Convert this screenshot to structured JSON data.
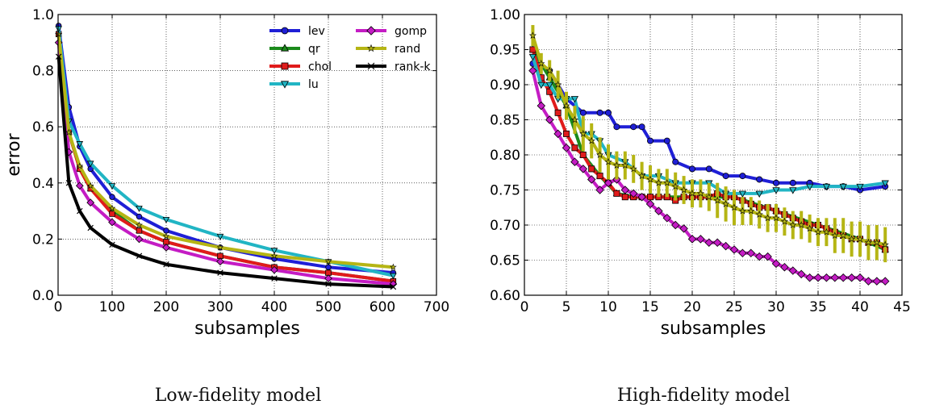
{
  "captions": {
    "left": "Low-fidelity model",
    "right": "High-fidelity model"
  },
  "chart_data": [
    {
      "type": "line",
      "xlabel": "subsamples",
      "ylabel": "error",
      "xlim": [
        0,
        700
      ],
      "ylim": [
        0.0,
        1.0
      ],
      "xticks": [
        "0",
        "100",
        "200",
        "300",
        "400",
        "500",
        "600",
        "700"
      ],
      "yticks": [
        "0.0",
        "0.2",
        "0.4",
        "0.6",
        "0.8",
        "1.0"
      ],
      "grid": true,
      "legend": "top-right, two columns",
      "series": [
        {
          "name": "lev",
          "color": "#1f1fd6",
          "marker": "circle",
          "x": [
            1,
            20,
            40,
            60,
            100,
            150,
            200,
            300,
            400,
            500,
            620
          ],
          "y": [
            0.96,
            0.67,
            0.53,
            0.45,
            0.35,
            0.28,
            0.23,
            0.17,
            0.13,
            0.1,
            0.08
          ]
        },
        {
          "name": "qr",
          "color": "#1b8a1b",
          "marker": "triangle-up",
          "x": [
            1,
            20,
            40,
            60,
            100,
            150,
            200,
            300,
            400,
            500,
            620
          ],
          "y": [
            0.94,
            0.58,
            0.45,
            0.38,
            0.3,
            0.23,
            0.19,
            0.14,
            0.1,
            0.08,
            0.05
          ]
        },
        {
          "name": "chol",
          "color": "#e01b1b",
          "marker": "square",
          "x": [
            1,
            20,
            40,
            60,
            100,
            150,
            200,
            300,
            400,
            500,
            620
          ],
          "y": [
            0.93,
            0.58,
            0.45,
            0.38,
            0.29,
            0.23,
            0.19,
            0.14,
            0.1,
            0.08,
            0.05
          ]
        },
        {
          "name": "lu",
          "color": "#21b5c4",
          "marker": "triangle-down",
          "x": [
            1,
            20,
            40,
            60,
            100,
            150,
            200,
            300,
            400,
            500,
            620
          ],
          "y": [
            0.95,
            0.62,
            0.54,
            0.47,
            0.39,
            0.31,
            0.27,
            0.21,
            0.16,
            0.12,
            0.07
          ]
        },
        {
          "name": "gomp",
          "color": "#c41cc4",
          "marker": "diamond",
          "x": [
            1,
            20,
            40,
            60,
            100,
            150,
            200,
            300,
            400,
            500,
            620
          ],
          "y": [
            0.9,
            0.51,
            0.39,
            0.33,
            0.26,
            0.2,
            0.17,
            0.12,
            0.09,
            0.06,
            0.04
          ]
        },
        {
          "name": "rand",
          "color": "#b5b514",
          "marker": "star",
          "x": [
            1,
            20,
            40,
            60,
            100,
            150,
            200,
            300,
            400,
            500,
            620
          ],
          "y": [
            0.93,
            0.58,
            0.46,
            0.39,
            0.31,
            0.25,
            0.21,
            0.17,
            0.14,
            0.12,
            0.1
          ]
        },
        {
          "name": "rank-k",
          "color": "#000000",
          "marker": "x",
          "x": [
            1,
            20,
            40,
            60,
            100,
            150,
            200,
            300,
            400,
            500,
            620
          ],
          "y": [
            0.85,
            0.4,
            0.3,
            0.24,
            0.18,
            0.14,
            0.11,
            0.08,
            0.06,
            0.04,
            0.03
          ]
        }
      ]
    },
    {
      "type": "line",
      "xlabel": "subsamples",
      "ylabel": "",
      "xlim": [
        0,
        45
      ],
      "ylim": [
        0.6,
        1.0
      ],
      "xticks": [
        "0",
        "5",
        "10",
        "15",
        "20",
        "25",
        "30",
        "35",
        "40",
        "45"
      ],
      "yticks": [
        "0.60",
        "0.65",
        "0.70",
        "0.75",
        "0.80",
        "0.85",
        "0.90",
        "0.95",
        "1.00"
      ],
      "grid": true,
      "series": [
        {
          "name": "lev",
          "color": "#1f1fd6",
          "marker": "circle",
          "x": [
            1,
            3,
            5,
            7,
            9,
            10,
            11,
            13,
            14,
            15,
            17,
            18,
            20,
            22,
            24,
            26,
            28,
            30,
            32,
            34,
            36,
            38,
            40,
            43
          ],
          "y": [
            0.93,
            0.92,
            0.88,
            0.86,
            0.86,
            0.86,
            0.84,
            0.84,
            0.84,
            0.82,
            0.82,
            0.79,
            0.78,
            0.78,
            0.77,
            0.77,
            0.765,
            0.76,
            0.76,
            0.76,
            0.755,
            0.755,
            0.75,
            0.755
          ]
        },
        {
          "name": "qr",
          "color": "#1b8a1b",
          "marker": "triangle-up",
          "x": [
            1,
            3,
            5,
            7,
            9,
            11,
            13,
            15,
            17,
            20,
            25,
            30,
            35,
            40,
            43
          ],
          "y": [
            0.95,
            0.91,
            0.87,
            0.8,
            0.77,
            0.745,
            0.74,
            0.74,
            0.74,
            0.74,
            0.74,
            0.72,
            0.7,
            0.68,
            0.665
          ]
        },
        {
          "name": "chol",
          "color": "#e01b1b",
          "marker": "square",
          "x": [
            1,
            2,
            3,
            4,
            5,
            6,
            7,
            8,
            9,
            10,
            11,
            12,
            13,
            14,
            15,
            16,
            17,
            18,
            19,
            20,
            21,
            22,
            23,
            24,
            25,
            26,
            27,
            28,
            29,
            30,
            31,
            32,
            33,
            34,
            35,
            36,
            37,
            38,
            39,
            40,
            41,
            42,
            43
          ],
          "y": [
            0.95,
            0.91,
            0.89,
            0.86,
            0.83,
            0.81,
            0.8,
            0.78,
            0.77,
            0.76,
            0.745,
            0.74,
            0.74,
            0.74,
            0.74,
            0.74,
            0.74,
            0.735,
            0.74,
            0.74,
            0.74,
            0.74,
            0.745,
            0.74,
            0.74,
            0.735,
            0.73,
            0.725,
            0.725,
            0.72,
            0.715,
            0.71,
            0.705,
            0.7,
            0.7,
            0.695,
            0.69,
            0.685,
            0.68,
            0.68,
            0.675,
            0.675,
            0.665
          ]
        },
        {
          "name": "lu",
          "color": "#21b5c4",
          "marker": "triangle-down",
          "x": [
            1,
            2,
            3,
            4,
            5,
            6,
            7,
            8,
            9,
            10,
            12,
            14,
            16,
            18,
            20,
            22,
            24,
            26,
            28,
            30,
            32,
            34,
            36,
            38,
            40,
            43
          ],
          "y": [
            0.94,
            0.9,
            0.9,
            0.88,
            0.88,
            0.88,
            0.83,
            0.83,
            0.82,
            0.8,
            0.79,
            0.77,
            0.77,
            0.76,
            0.76,
            0.76,
            0.745,
            0.745,
            0.745,
            0.75,
            0.75,
            0.755,
            0.755,
            0.755,
            0.755,
            0.76
          ]
        },
        {
          "name": "gomp",
          "color": "#c41cc4",
          "marker": "diamond",
          "x": [
            1,
            2,
            3,
            4,
            5,
            6,
            7,
            8,
            9,
            10,
            11,
            12,
            13,
            14,
            15,
            16,
            17,
            18,
            19,
            20,
            21,
            22,
            23,
            24,
            25,
            26,
            27,
            28,
            29,
            30,
            31,
            32,
            33,
            34,
            35,
            36,
            37,
            38,
            39,
            40,
            41,
            42,
            43
          ],
          "y": [
            0.92,
            0.87,
            0.85,
            0.83,
            0.81,
            0.79,
            0.78,
            0.765,
            0.75,
            0.76,
            0.765,
            0.75,
            0.745,
            0.74,
            0.73,
            0.72,
            0.71,
            0.7,
            0.695,
            0.68,
            0.68,
            0.675,
            0.675,
            0.67,
            0.665,
            0.66,
            0.66,
            0.655,
            0.655,
            0.645,
            0.64,
            0.635,
            0.63,
            0.625,
            0.625,
            0.625,
            0.625,
            0.625,
            0.625,
            0.625,
            0.62,
            0.62,
            0.62
          ]
        },
        {
          "name": "rand",
          "color": "#b5b514",
          "marker": "star",
          "x": [
            1,
            2,
            3,
            4,
            5,
            6,
            7,
            8,
            9,
            10,
            11,
            12,
            13,
            14,
            15,
            16,
            17,
            18,
            19,
            20,
            21,
            22,
            23,
            24,
            25,
            26,
            27,
            28,
            29,
            30,
            31,
            32,
            33,
            34,
            35,
            36,
            37,
            38,
            39,
            40,
            41,
            42,
            43
          ],
          "y": [
            0.97,
            0.93,
            0.92,
            0.9,
            0.87,
            0.85,
            0.83,
            0.82,
            0.8,
            0.79,
            0.785,
            0.785,
            0.78,
            0.77,
            0.765,
            0.76,
            0.76,
            0.755,
            0.75,
            0.745,
            0.745,
            0.74,
            0.735,
            0.73,
            0.725,
            0.72,
            0.72,
            0.715,
            0.71,
            0.71,
            0.705,
            0.7,
            0.7,
            0.695,
            0.69,
            0.69,
            0.685,
            0.685,
            0.68,
            0.68,
            0.675,
            0.675,
            0.672
          ],
          "err": [
            0.015,
            0.015,
            0.015,
            0.02,
            0.02,
            0.02,
            0.025,
            0.025,
            0.025,
            0.025,
            0.02,
            0.02,
            0.02,
            0.02,
            0.02,
            0.02,
            0.02,
            0.02,
            0.02,
            0.02,
            0.02,
            0.02,
            0.025,
            0.025,
            0.025,
            0.02,
            0.02,
            0.02,
            0.02,
            0.02,
            0.02,
            0.02,
            0.02,
            0.02,
            0.02,
            0.02,
            0.025,
            0.025,
            0.025,
            0.025,
            0.025,
            0.025,
            0.025
          ]
        },
        {
          "name": "rank-k",
          "color": "#000000",
          "marker": "x",
          "x": [],
          "y": []
        }
      ]
    }
  ]
}
